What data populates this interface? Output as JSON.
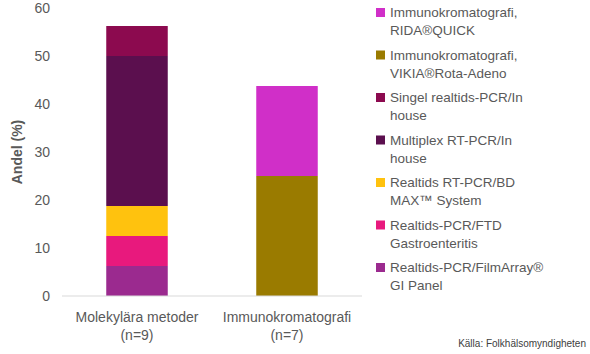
{
  "chart_data": {
    "type": "bar",
    "stacked": true,
    "grid": false,
    "legend": "right",
    "y_label": "Andel (%)",
    "source": "Källa: Folkhälsomyndigheten",
    "categories": [
      "Molekylära metoder\n(n=9)",
      "Immunokromatografi\n(n=7)"
    ],
    "ylim": [
      0,
      60
    ],
    "yticks": [
      0,
      10,
      20,
      30,
      40,
      50,
      60
    ],
    "series": [
      {
        "name": "Realtids-PCR/FilmArray®\nGI Panel",
        "color": "#9b2a8f",
        "values": [
          6.25,
          null
        ]
      },
      {
        "name": "Realtids-PCR/FTD\nGastroenteritis",
        "color": "#e8197d",
        "values": [
          6.25,
          null
        ]
      },
      {
        "name": "Realtids RT-PCR/BD\nMAX™ System",
        "color": "#ffc20e",
        "values": [
          6.25,
          null
        ]
      },
      {
        "name": "Multiplex RT-PCR/In\nhouse",
        "color": "#5b0f4e",
        "values": [
          31.25,
          null
        ]
      },
      {
        "name": "Singel realtids-PCR/In\nhouse",
        "color": "#8c0a4f",
        "values": [
          6.25,
          null
        ]
      },
      {
        "name": "Immunokromatografi,\nVIKIA®Rota-Adeno",
        "color": "#9a7b00",
        "values": [
          null,
          25
        ]
      },
      {
        "name": "Immunokromatografi,\nRIDA®QUICK",
        "color": "#d02fc8",
        "values": [
          null,
          18.75
        ]
      }
    ]
  }
}
